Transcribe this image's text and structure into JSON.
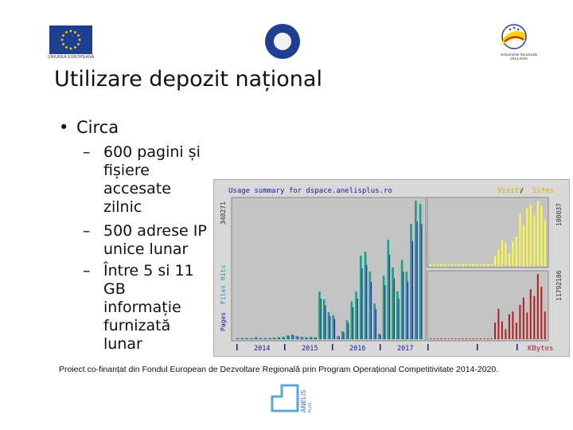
{
  "header": {
    "eu_caption": "UNIUNEA EUROPEANĂ",
    "ro_caption": [
      "Instrumente Structurale",
      "2014-2020"
    ]
  },
  "title": "Utilizare depozit național",
  "bullets": {
    "main": "Circa",
    "dot": "•",
    "dash": "–",
    "items": [
      [
        "600 pagini și",
        "fișiere",
        "accesate",
        "zilnic"
      ],
      [
        "500 adrese IP",
        "unice lunar"
      ],
      [
        "Între 5 si 11",
        "GB",
        "informație",
        "furnizată",
        "lunar"
      ]
    ]
  },
  "stats_chart": {
    "title": "Usage summary for dspace.anelisplus.ro",
    "legend_top_a": "Visits",
    "legend_sep": " / ",
    "legend_top_b": "Sites",
    "legend_bottom": "KBytes",
    "left_axis_words": [
      "Pages",
      "Files",
      "Hits"
    ],
    "left_max": "348271",
    "right_max_top": "100037",
    "right_max_bottom": "11792106",
    "years": [
      "2014",
      "2015",
      "2016",
      "2017"
    ],
    "colors": {
      "pages": "#1a1a9a",
      "files": "#2a8fd0",
      "hits": "#1c9c8c",
      "visits": "#ffff33",
      "sites": "#e8a600",
      "kbytes": "#b02020"
    }
  },
  "chart_data": [
    {
      "type": "bar",
      "title": "Usage summary for dspace.anelisplus.ro",
      "ylim": [
        0,
        348271
      ],
      "x": [
        1,
        2,
        3,
        4,
        5,
        6,
        7,
        8,
        9,
        10,
        11,
        12,
        13,
        14,
        15,
        16,
        17,
        18,
        19,
        20,
        21,
        22,
        23,
        24,
        25,
        26,
        27,
        28,
        29,
        30,
        31,
        32,
        33,
        34,
        35,
        36,
        37,
        38,
        39,
        40,
        41
      ],
      "series": [
        {
          "name": "Hits",
          "values": [
            3000,
            3000,
            3000,
            3000,
            5000,
            3000,
            3000,
            3000,
            4000,
            5000,
            6000,
            10000,
            12000,
            8000,
            6000,
            5000,
            6000,
            5000,
            120000,
            100000,
            68000,
            60000,
            8000,
            20000,
            48000,
            95000,
            120000,
            210000,
            220000,
            170000,
            90000,
            14000,
            160000,
            250000,
            180000,
            120000,
            200000,
            170000,
            290000,
            348271,
            340000
          ]
        }
      ]
    },
    {
      "type": "bar",
      "ylim": [
        0,
        100037
      ],
      "x": [
        1,
        2,
        3,
        4,
        5,
        6,
        7,
        8,
        9,
        10,
        11,
        12,
        13,
        14,
        15,
        16,
        17,
        18,
        19,
        20,
        21,
        22,
        23,
        24,
        25,
        26,
        27,
        28,
        29,
        30,
        31,
        32,
        33
      ],
      "series": [
        {
          "name": "Visits",
          "values": [
            3000,
            3000,
            3000,
            3000,
            3000,
            3000,
            3000,
            3000,
            3000,
            3000,
            3000,
            3000,
            3000,
            3000,
            3000,
            3000,
            3000,
            3000,
            15000,
            25000,
            40000,
            35000,
            20000,
            38000,
            45000,
            80000,
            62000,
            88000,
            94000,
            78000,
            100037,
            92000,
            70000
          ]
        }
      ]
    },
    {
      "type": "bar",
      "ylim": [
        0,
        11792106
      ],
      "x": [
        1,
        2,
        3,
        4,
        5,
        6,
        7,
        8,
        9,
        10,
        11,
        12,
        13,
        14,
        15,
        16,
        17,
        18,
        19,
        20,
        21,
        22,
        23,
        24,
        25,
        26,
        27,
        28,
        29,
        30,
        31,
        32,
        33
      ],
      "series": [
        {
          "name": "KBytes",
          "values": [
            150000,
            150000,
            150000,
            150000,
            150000,
            150000,
            150000,
            150000,
            150000,
            150000,
            150000,
            150000,
            150000,
            150000,
            150000,
            150000,
            150000,
            150000,
            3000000,
            5500000,
            3200000,
            1800000,
            4500000,
            5000000,
            3000000,
            6200000,
            7500000,
            4800000,
            9000000,
            7800000,
            11792106,
            9500000,
            5000000
          ]
        }
      ]
    }
  ],
  "footer": "Proiect co-finanțat din Fondul European de Dezvoltare Regională prin Program Operațional Competitivitate 2014-2020.",
  "anelis_logo": {
    "text": "ANELIS",
    "plus": "PLUS"
  }
}
